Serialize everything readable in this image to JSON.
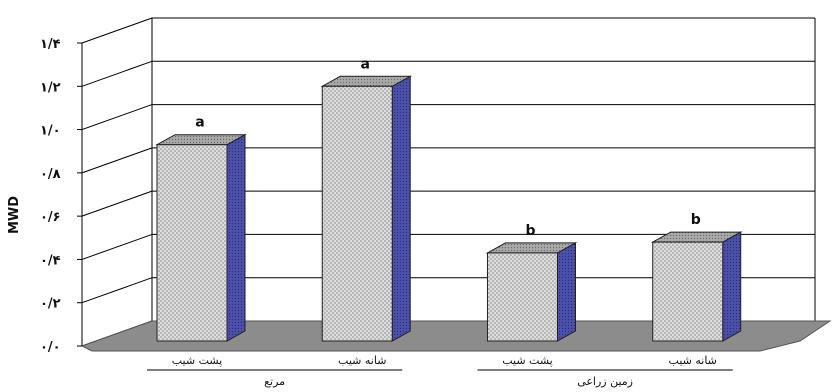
{
  "chart_data": {
    "type": "bar",
    "title": "",
    "ylabel": "MWD",
    "xlabel": "",
    "ylim": [
      0,
      1.4
    ],
    "yticks": [
      0,
      0.2,
      0.4,
      0.6,
      0.8,
      1.0,
      1.2,
      1.4
    ],
    "ytick_labels": [
      "۰/۰",
      "۰/۲",
      "۰/۴",
      "۰/۶",
      "۰/۸",
      "۱/۰",
      "۱/۲",
      "۱/۴"
    ],
    "categories": [
      "پشت شیب",
      "شانه شیب",
      "پشت شیب",
      "شانه شیب"
    ],
    "values": [
      0.93,
      1.2,
      0.43,
      0.48
    ],
    "data_labels": [
      "a",
      "a",
      "b",
      "b"
    ],
    "groups": [
      {
        "label": "مرتع",
        "categories": [
          0,
          1
        ]
      },
      {
        "label": "زمین زراعی",
        "categories": [
          2,
          3
        ]
      }
    ],
    "grid": true,
    "three_d": true,
    "colors": {
      "bar_front": "#d6d6d6",
      "bar_side": "#4a4fa8",
      "bar_top": "#9a9a9a",
      "floor": "#8c8c8c",
      "grid": "#000000"
    }
  }
}
